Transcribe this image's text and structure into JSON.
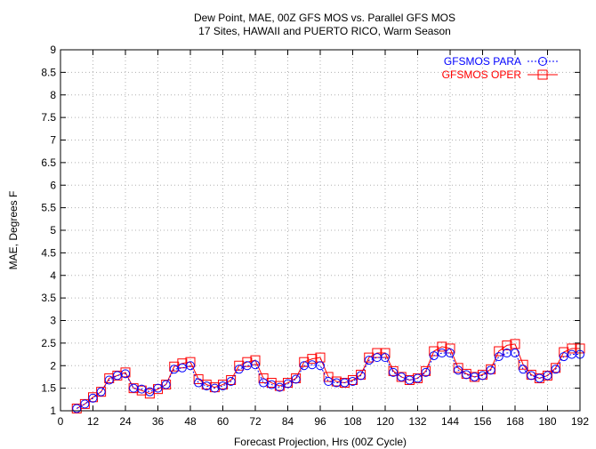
{
  "chart_data": {
    "type": "line",
    "title": "Dew Point, MAE, 00Z GFS MOS vs. Parallel GFS MOS",
    "subtitle": "17 Sites, HAWAII and PUERTO RICO, Warm Season",
    "xlabel": "Forecast Projection, Hrs (00Z Cycle)",
    "ylabel": "MAE, Degrees F",
    "xlim": [
      0,
      192
    ],
    "ylim": [
      1,
      9
    ],
    "xticks": [
      0,
      12,
      24,
      36,
      48,
      60,
      72,
      84,
      96,
      108,
      120,
      132,
      144,
      156,
      168,
      180,
      192
    ],
    "yticks": [
      1,
      1.5,
      2,
      2.5,
      3,
      3.5,
      4,
      4.5,
      5,
      5.5,
      6,
      6.5,
      7,
      7.5,
      8,
      8.5,
      9
    ],
    "ytick_labels": [
      "1",
      "1.5",
      "2",
      "2.5",
      "3",
      "3.5",
      "4",
      "4.5",
      "5",
      "5.5",
      "6",
      "6.5",
      "7",
      "7.5",
      "8",
      "8.5",
      "9"
    ],
    "grid": true,
    "legend_position": "top-right",
    "x": [
      6,
      9,
      12,
      15,
      18,
      21,
      24,
      27,
      30,
      33,
      36,
      39,
      42,
      45,
      48,
      51,
      54,
      57,
      60,
      63,
      66,
      69,
      72,
      75,
      78,
      81,
      84,
      87,
      90,
      93,
      96,
      99,
      102,
      105,
      108,
      111,
      114,
      117,
      120,
      123,
      126,
      129,
      132,
      135,
      138,
      141,
      144,
      147,
      150,
      153,
      156,
      159,
      162,
      165,
      168,
      171,
      174,
      177,
      180,
      183,
      186,
      189,
      192
    ],
    "series": [
      {
        "name": "GFSMOS PARA",
        "color": "#0000ff",
        "marker": "circle",
        "line_style": "dotted",
        "values": [
          1.05,
          1.15,
          1.28,
          1.42,
          1.68,
          1.78,
          1.82,
          1.5,
          1.48,
          1.42,
          1.5,
          1.58,
          1.92,
          1.95,
          2.0,
          1.62,
          1.55,
          1.5,
          1.55,
          1.65,
          1.92,
          2.0,
          2.02,
          1.62,
          1.58,
          1.52,
          1.6,
          1.7,
          2.0,
          2.02,
          2.0,
          1.65,
          1.62,
          1.62,
          1.65,
          1.78,
          2.12,
          2.18,
          2.18,
          1.85,
          1.75,
          1.68,
          1.72,
          1.85,
          2.22,
          2.28,
          2.28,
          1.9,
          1.8,
          1.75,
          1.78,
          1.9,
          2.2,
          2.28,
          2.28,
          1.92,
          1.78,
          1.72,
          1.78,
          1.92,
          2.2,
          2.25,
          2.25
        ]
      },
      {
        "name": "GFSMOS OPER",
        "color": "#ff0000",
        "marker": "square",
        "line_style": "solid",
        "values": [
          1.05,
          1.15,
          1.3,
          1.42,
          1.72,
          1.78,
          1.85,
          1.5,
          1.45,
          1.38,
          1.48,
          1.58,
          1.98,
          2.05,
          2.08,
          1.7,
          1.58,
          1.52,
          1.58,
          1.68,
          2.0,
          2.08,
          2.12,
          1.72,
          1.62,
          1.55,
          1.62,
          1.72,
          2.08,
          2.15,
          2.18,
          1.75,
          1.65,
          1.62,
          1.68,
          1.8,
          2.18,
          2.28,
          2.28,
          1.88,
          1.75,
          1.68,
          1.72,
          1.88,
          2.32,
          2.42,
          2.38,
          1.95,
          1.82,
          1.75,
          1.8,
          1.92,
          2.32,
          2.45,
          2.48,
          2.02,
          1.8,
          1.72,
          1.78,
          1.95,
          2.3,
          2.38,
          2.38
        ]
      }
    ]
  }
}
